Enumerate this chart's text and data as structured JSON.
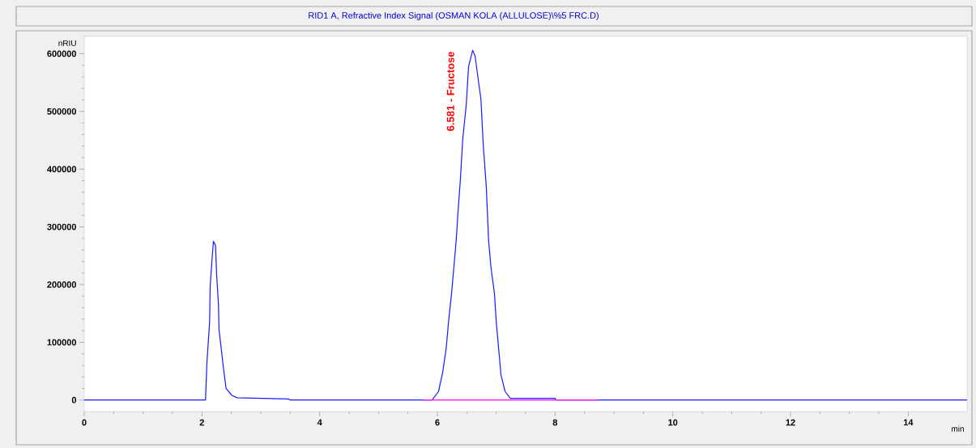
{
  "chart_data": {
    "type": "line",
    "title": "RID1 A, Refractive Index Signal (OSMAN KOLA (ALLULOSE)\\%5 FRC.D)",
    "xlabel": "min",
    "ylabel": "nRIU",
    "series": [
      {
        "color": "#1a1aff",
        "x": [
          0,
          2.06,
          2.085,
          2.13,
          2.14,
          2.17,
          2.195,
          2.23,
          2.25,
          2.28,
          2.29,
          2.33,
          2.37,
          2.41,
          2.51,
          2.6,
          3.47,
          3.5,
          5.91,
          6.02,
          6.09,
          6.15,
          6.19,
          6.24,
          6.28,
          6.32,
          6.35,
          6.39,
          6.43,
          6.49,
          6.53,
          6.6,
          6.64,
          6.74,
          6.78,
          6.83,
          6.87,
          6.91,
          6.97,
          7.0,
          7.04,
          7.08,
          7.15,
          7.24,
          8.0,
          8.01,
          15
        ],
        "values": [
          0,
          0,
          66000,
          135000,
          198000,
          242000,
          275000,
          268000,
          216000,
          167000,
          122000,
          87000,
          51000,
          20000,
          8000,
          4000,
          2000,
          0,
          0,
          15000,
          48000,
          90000,
          136000,
          184000,
          230000,
          277000,
          325000,
          381000,
          451000,
          511000,
          578000,
          606000,
          596000,
          521000,
          441000,
          371000,
          277000,
          230000,
          184000,
          136000,
          90000,
          44000,
          15000,
          3000,
          3000,
          0,
          0
        ]
      },
      {
        "color": "#ff00ff",
        "x": [
          5.75,
          8.72
        ],
        "values": [
          0,
          0
        ]
      }
    ],
    "annotations": [
      {
        "text": "6.581 - Fructose",
        "x": 6.581,
        "y": 606000
      }
    ],
    "xlim": [
      0,
      15
    ],
    "ylim": [
      -20000,
      630000
    ],
    "xticks": [
      0,
      2,
      4,
      6,
      8,
      10,
      12,
      14
    ],
    "yticks": [
      0,
      100000,
      200000,
      300000,
      400000,
      500000,
      600000
    ]
  }
}
